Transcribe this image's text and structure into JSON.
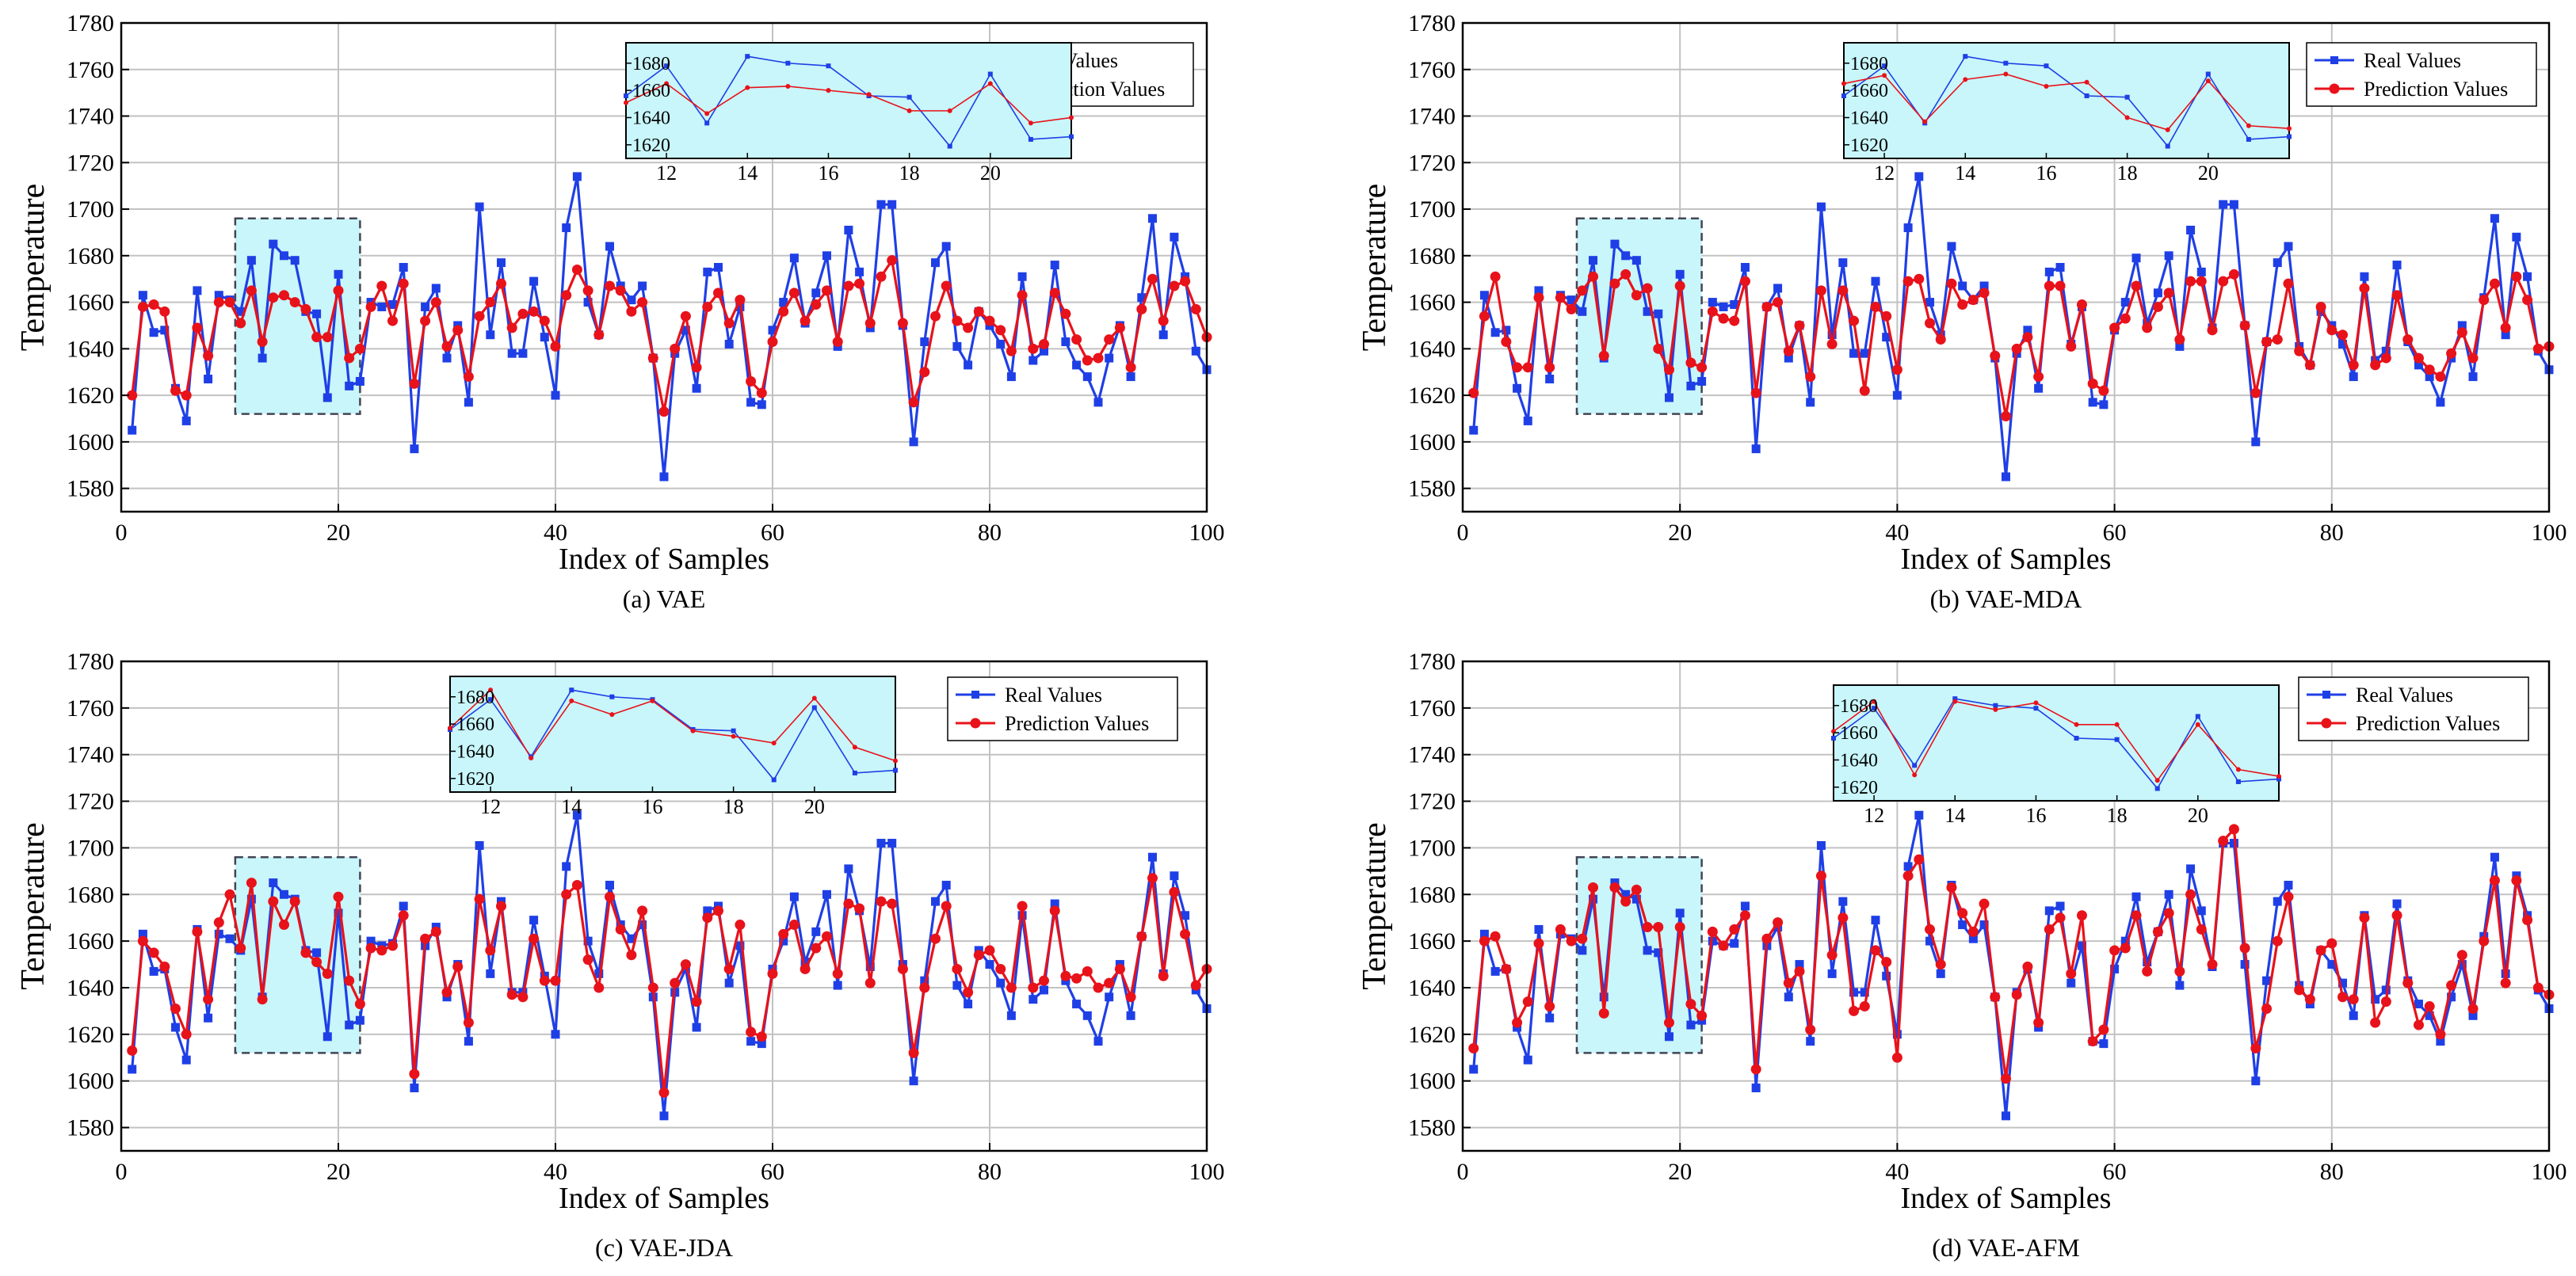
{
  "colors": {
    "real": "#1f3fe6",
    "pred": "#e8121a",
    "grid": "#c2c2c2",
    "zoom_box": "#c8f6fa",
    "axis": "#000000"
  },
  "shared": {
    "xlabel": "Index of Samples",
    "ylabel": "Temperature",
    "xlim": [
      0,
      100
    ],
    "ylim": [
      1570,
      1780
    ],
    "x_ticks": [
      0,
      20,
      40,
      60,
      80,
      100
    ],
    "y_ticks": [
      1580,
      1600,
      1620,
      1640,
      1660,
      1680,
      1700,
      1720,
      1740,
      1760,
      1780
    ],
    "legend_real": "Real Values",
    "legend_pred": "Prediction Values",
    "zoom_region_x": [
      10.5,
      22
    ],
    "inset_xlim": [
      11,
      22
    ],
    "inset_ylim": [
      1610,
      1695
    ],
    "inset_x_ticks": [
      12,
      14,
      16,
      18,
      20
    ],
    "inset_y_ticks": [
      1620,
      1640,
      1660,
      1680
    ],
    "real_values": [
      1605,
      1663,
      1647,
      1648,
      1623,
      1609,
      1665,
      1627,
      1663,
      1661,
      1656,
      1678,
      1636,
      1685,
      1680,
      1678,
      1656,
      1655,
      1619,
      1672,
      1624,
      1626,
      1660,
      1658,
      1659,
      1675,
      1597,
      1658,
      1666,
      1636,
      1650,
      1617,
      1701,
      1646,
      1677,
      1638,
      1638,
      1669,
      1645,
      1620,
      1692,
      1714,
      1660,
      1646,
      1684,
      1667,
      1661,
      1667,
      1636,
      1585,
      1638,
      1648,
      1623,
      1673,
      1675,
      1642,
      1658,
      1617,
      1616,
      1648,
      1660,
      1679,
      1651,
      1664,
      1680,
      1641,
      1691,
      1673,
      1649,
      1702,
      1702,
      1650,
      1600,
      1643,
      1677,
      1684,
      1641,
      1633,
      1656,
      1650,
      1642,
      1628,
      1671,
      1635,
      1639,
      1676,
      1643,
      1633,
      1628,
      1617,
      1636,
      1650,
      1628,
      1662,
      1696,
      1646,
      1688,
      1671,
      1639,
      1631
    ]
  },
  "chart_data": [
    {
      "type": "line",
      "title": "(a) VAE",
      "xlabel": "Index of Samples",
      "ylabel": "Temperature",
      "xlim": [
        0,
        100
      ],
      "ylim": [
        1570,
        1780
      ],
      "legend": "top-right",
      "series": [
        {
          "name": "Real Values",
          "ref": "shared.real_values"
        },
        {
          "name": "Prediction Values",
          "values": [
            1620,
            1658,
            1659,
            1656,
            1622,
            1620,
            1649,
            1637,
            1660,
            1660,
            1651,
            1665,
            1643,
            1662,
            1663,
            1660,
            1657,
            1645,
            1645,
            1665,
            1636,
            1640,
            1658,
            1667,
            1652,
            1668,
            1625,
            1652,
            1660,
            1641,
            1648,
            1628,
            1654,
            1660,
            1668,
            1649,
            1655,
            1656,
            1652,
            1641,
            1663,
            1674,
            1665,
            1646,
            1667,
            1665,
            1656,
            1660,
            1636,
            1613,
            1640,
            1654,
            1632,
            1658,
            1664,
            1651,
            1661,
            1626,
            1621,
            1643,
            1656,
            1664,
            1652,
            1659,
            1665,
            1643,
            1667,
            1668,
            1651,
            1671,
            1678,
            1651,
            1617,
            1630,
            1654,
            1667,
            1652,
            1649,
            1656,
            1652,
            1648,
            1639,
            1663,
            1640,
            1642,
            1664,
            1655,
            1644,
            1635,
            1636,
            1644,
            1649,
            1632,
            1657,
            1670,
            1652,
            1667,
            1669,
            1657,
            1645
          ]
        }
      ]
    },
    {
      "type": "line",
      "title": "(b) VAE-MDA",
      "xlabel": "Index of Samples",
      "ylabel": "Temperature",
      "xlim": [
        0,
        100
      ],
      "ylim": [
        1570,
        1780
      ],
      "legend": "top-right",
      "series": [
        {
          "name": "Real Values",
          "ref": "shared.real_values"
        },
        {
          "name": "Prediction Values",
          "values": [
            1621,
            1654,
            1671,
            1643,
            1632,
            1632,
            1662,
            1632,
            1662,
            1657,
            1665,
            1671,
            1637,
            1668,
            1672,
            1663,
            1666,
            1640,
            1631,
            1667,
            1634,
            1632,
            1656,
            1653,
            1652,
            1669,
            1621,
            1658,
            1660,
            1639,
            1650,
            1628,
            1665,
            1642,
            1665,
            1652,
            1622,
            1658,
            1654,
            1631,
            1669,
            1670,
            1651,
            1644,
            1668,
            1659,
            1661,
            1664,
            1637,
            1611,
            1640,
            1645,
            1628,
            1667,
            1667,
            1641,
            1659,
            1625,
            1622,
            1649,
            1653,
            1667,
            1649,
            1658,
            1664,
            1644,
            1669,
            1669,
            1648,
            1669,
            1672,
            1650,
            1621,
            1643,
            1644,
            1668,
            1639,
            1633,
            1658,
            1648,
            1646,
            1633,
            1666,
            1633,
            1636,
            1663,
            1644,
            1636,
            1631,
            1628,
            1638,
            1647,
            1636,
            1661,
            1668,
            1649,
            1671,
            1661,
            1640,
            1641
          ]
        }
      ]
    },
    {
      "type": "line",
      "title": "(c) VAE-JDA",
      "xlabel": "Index of Samples",
      "ylabel": "Temperature",
      "xlim": [
        0,
        100
      ],
      "ylim": [
        1570,
        1780
      ],
      "legend": "top-right",
      "series": [
        {
          "name": "Real Values",
          "ref": "shared.real_values"
        },
        {
          "name": "Prediction Values",
          "values": [
            1613,
            1660,
            1655,
            1649,
            1631,
            1620,
            1664,
            1635,
            1668,
            1680,
            1657,
            1685,
            1635,
            1677,
            1667,
            1677,
            1655,
            1651,
            1646,
            1679,
            1643,
            1633,
            1657,
            1656,
            1658,
            1671,
            1603,
            1661,
            1664,
            1638,
            1649,
            1625,
            1678,
            1656,
            1675,
            1637,
            1636,
            1661,
            1643,
            1643,
            1680,
            1684,
            1652,
            1640,
            1679,
            1665,
            1654,
            1673,
            1640,
            1595,
            1642,
            1650,
            1634,
            1670,
            1673,
            1648,
            1667,
            1621,
            1619,
            1646,
            1663,
            1667,
            1648,
            1657,
            1662,
            1646,
            1676,
            1674,
            1642,
            1677,
            1676,
            1648,
            1612,
            1640,
            1661,
            1675,
            1648,
            1638,
            1654,
            1656,
            1648,
            1640,
            1675,
            1640,
            1643,
            1673,
            1645,
            1644,
            1647,
            1640,
            1642,
            1648,
            1636,
            1662,
            1687,
            1645,
            1681,
            1663,
            1641,
            1648
          ]
        }
      ]
    },
    {
      "type": "line",
      "title": "(d) VAE-AFM",
      "xlabel": "Index of Samples",
      "ylabel": "Temperature",
      "xlim": [
        0,
        100
      ],
      "ylim": [
        1570,
        1780
      ],
      "legend": "top-right",
      "series": [
        {
          "name": "Real Values",
          "ref": "shared.real_values"
        },
        {
          "name": "Prediction Values",
          "values": [
            1614,
            1660,
            1662,
            1648,
            1625,
            1634,
            1659,
            1632,
            1665,
            1660,
            1661,
            1683,
            1629,
            1683,
            1677,
            1682,
            1666,
            1666,
            1625,
            1666,
            1633,
            1628,
            1664,
            1658,
            1665,
            1671,
            1605,
            1661,
            1668,
            1642,
            1647,
            1622,
            1688,
            1654,
            1670,
            1630,
            1632,
            1656,
            1651,
            1610,
            1688,
            1695,
            1665,
            1650,
            1683,
            1672,
            1664,
            1676,
            1636,
            1601,
            1637,
            1649,
            1625,
            1665,
            1670,
            1646,
            1671,
            1617,
            1622,
            1656,
            1657,
            1671,
            1647,
            1664,
            1672,
            1647,
            1680,
            1665,
            1650,
            1703,
            1708,
            1657,
            1614,
            1631,
            1660,
            1679,
            1639,
            1635,
            1656,
            1659,
            1636,
            1635,
            1670,
            1625,
            1634,
            1671,
            1642,
            1624,
            1632,
            1620,
            1641,
            1654,
            1631,
            1660,
            1686,
            1642,
            1686,
            1669,
            1640,
            1637
          ]
        }
      ]
    }
  ]
}
